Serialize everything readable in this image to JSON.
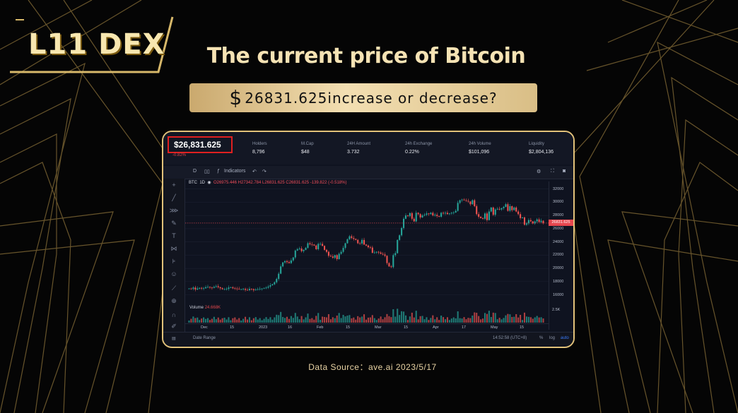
{
  "logo": {
    "text": "L11 DEX"
  },
  "headline": "The current price of Bitcoin",
  "banner": {
    "currency_symbol": "$",
    "text": "26831.625increase or decrease?"
  },
  "stats": {
    "price": "$26,831.625",
    "change": "-0.82%",
    "items": [
      {
        "label": "Holders",
        "value": "8,796"
      },
      {
        "label": "M.Cap",
        "value": "$48"
      },
      {
        "label": "24H Amount",
        "value": "3.732"
      },
      {
        "label": "24h Exchange",
        "value": "0.22%"
      },
      {
        "label": "24h Volume",
        "value": "$101,096"
      },
      {
        "label": "Liquidity",
        "value": "$2,804,136"
      }
    ]
  },
  "toolbar": {
    "interval": "D",
    "indicators_label": "Indicators"
  },
  "ohlc": {
    "symbol": "BTC",
    "interval": "1D",
    "values": "O26975.446 H27342.784 L26831.625 C26831.625",
    "change": "-139.822 (-0.518%)"
  },
  "volume": {
    "label": "Volume",
    "value": "24.668K"
  },
  "last_price_tag": "26831.625",
  "volume_axis_label": "2.5K",
  "bottombar": {
    "date_range": "Date Range",
    "time": "14:52:58 (UTC+8)",
    "percent": "%",
    "log": "log",
    "auto": "auto"
  },
  "footer": "Data Source：ave.ai 2023/5/17",
  "colors": {
    "up": "#26a69a",
    "down": "#ef5350",
    "gold": "#e2c27a",
    "accent_blue": "#3b7dff"
  },
  "chart_data": {
    "type": "candlestick",
    "y_ticks": [
      "32000",
      "30000",
      "28000",
      "26000",
      "24000",
      "22000",
      "20000",
      "18000",
      "16000"
    ],
    "x_ticks": [
      "Dec",
      "15",
      "2023",
      "16",
      "Feb",
      "15",
      "Mar",
      "15",
      "Apr",
      "17",
      "May",
      "15"
    ],
    "ylim": [
      15000,
      32500
    ],
    "series": [
      {
        "name": "BTC",
        "values": [
          16950,
          16900,
          17100,
          16800,
          16950,
          17050,
          16950,
          17000,
          17150,
          17200,
          17100,
          17050,
          17200,
          17300,
          17150,
          17000,
          16850,
          16850,
          16900,
          17100,
          17150,
          17000,
          16950,
          16900,
          16850,
          16850,
          16900,
          16750,
          16700,
          16900,
          16850,
          16700,
          16800,
          16850,
          16900,
          16950,
          17000,
          17100,
          17250,
          17450,
          17600,
          17900,
          18400,
          19200,
          20300,
          20900,
          21100,
          20950,
          20800,
          21200,
          21650,
          22700,
          22900,
          23000,
          22600,
          22800,
          23100,
          23800,
          23650,
          23600,
          23450,
          22900,
          23700,
          23700,
          23400,
          22800,
          22500,
          21900,
          21800,
          21600,
          22000,
          21400,
          22200,
          22500,
          23100,
          23800,
          24400,
          24850,
          24600,
          24450,
          24300,
          23800,
          23750,
          24300,
          23600,
          23450,
          23200,
          23150,
          22350,
          22400,
          22500,
          22400,
          22200,
          22100,
          21900,
          20800,
          20300,
          20200,
          22000,
          22300,
          24300,
          25000,
          26100,
          27500,
          28000,
          27900,
          28350,
          27500,
          27100,
          28400,
          28200,
          27700,
          28000,
          28100,
          28300,
          28200,
          28400,
          28000,
          28100,
          27900,
          27800,
          28400,
          28300,
          28400,
          28200,
          28300,
          28400,
          28450,
          28700,
          29900,
          30300,
          30400,
          30300,
          30200,
          30100,
          29700,
          30300,
          29400,
          28200,
          27800,
          27600,
          27500,
          28300,
          27300,
          28600,
          29200,
          28100,
          28900,
          29000,
          28900,
          29100,
          29300,
          29700,
          28700,
          29400,
          28800,
          29200,
          28600,
          28200,
          27600,
          27700,
          26600,
          26800,
          27300,
          27100,
          26800,
          27100,
          27400,
          27000,
          27200,
          26850
        ]
      }
    ]
  }
}
